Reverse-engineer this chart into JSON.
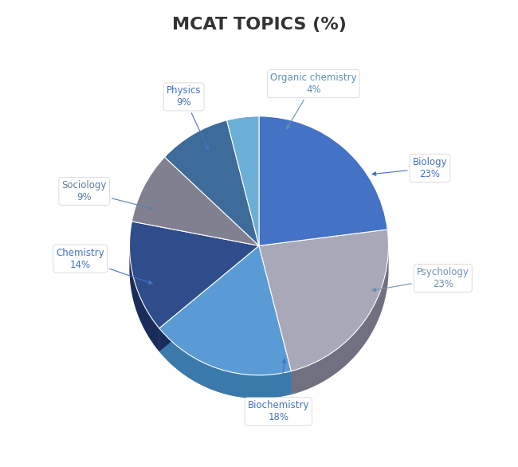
{
  "title": "MCAT TOPICS (%)",
  "labels": [
    "Biology",
    "Psychology",
    "Biochemistry",
    "Chemistry",
    "Sociology",
    "Physics",
    "Organic chemistry"
  ],
  "values": [
    23,
    23,
    18,
    14,
    9,
    9,
    4
  ],
  "colors": [
    "#4472C4",
    "#A8A8B8",
    "#5B9BD5",
    "#2E4D8A",
    "#808090",
    "#3D6B9A",
    "#6BAED6"
  ],
  "dark_colors": [
    "#2A4A7F",
    "#707080",
    "#3A7AAA",
    "#1A2D5A",
    "#505060",
    "#203050",
    "#4A8AB0"
  ],
  "background_color": "#FFFFFF",
  "title_fontsize": 16,
  "title_color": "#333333",
  "label_text_color": "#4472C4",
  "depth": 0.18,
  "start_angle": 90
}
